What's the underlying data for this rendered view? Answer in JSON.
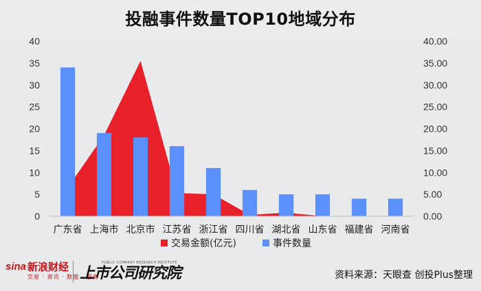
{
  "title": "投融事件数量TOP10地域分布",
  "source": "资料来源：天眼查 创投Plus整理",
  "branding": {
    "sina_word": "sina",
    "sina_cn": "新浪财经",
    "sina_sub": "交易 · 资讯 · 数据 · 服务",
    "institute": "上市公司研究院",
    "institute_en": "PUBLIC COMPANY RESEARCH INSTITUTE"
  },
  "colors": {
    "bar": "#5b8ff9",
    "area": "#e8202a",
    "background": "#e9eaec"
  },
  "chart_data": {
    "type": "bar",
    "categories": [
      "广东省",
      "上海市",
      "北京市",
      "江苏省",
      "浙江省",
      "四川省",
      "湖北省",
      "山东省",
      "福建省",
      "河南省"
    ],
    "series": [
      {
        "name": "交易金额(亿元)",
        "type": "area",
        "axis": "right",
        "values": [
          6.5,
          18.5,
          35.5,
          5.3,
          5.0,
          0.3,
          0.8,
          0.0,
          0.0,
          0.0
        ]
      },
      {
        "name": "事件数量",
        "type": "bar",
        "axis": "left",
        "values": [
          34,
          19,
          18,
          16,
          11,
          6,
          5,
          5,
          4,
          4
        ]
      }
    ],
    "ylim_left": [
      0,
      40
    ],
    "ylim_right": [
      0,
      40
    ],
    "yticks_left": [
      "0",
      "5",
      "10",
      "15",
      "20",
      "25",
      "30",
      "35",
      "40"
    ],
    "yticks_right": [
      "0.00",
      "5.00",
      "10.00",
      "15.00",
      "20.00",
      "25.00",
      "30.00",
      "35.00",
      "40.00"
    ],
    "legend_position": "bottom",
    "grid": false
  }
}
